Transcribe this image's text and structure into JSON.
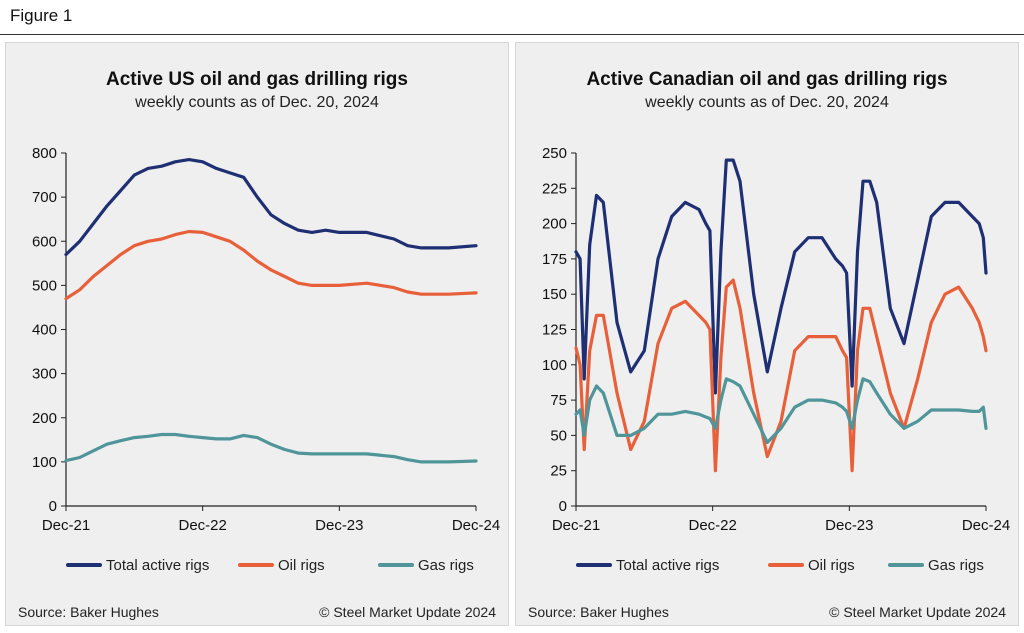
{
  "figure_label": "Figure 1",
  "colors": {
    "total": "#1f2f73",
    "oil": "#e8603a",
    "gas": "#4f9599"
  },
  "chart_data": [
    {
      "type": "line",
      "title": "Active US oil and gas drilling rigs",
      "subtitle": "weekly counts as of Dec. 20, 2024",
      "x_tick_labels": [
        "Dec-21",
        "Dec-22",
        "Dec-23",
        "Dec-24"
      ],
      "xlim": [
        0,
        3
      ],
      "ylim": [
        0,
        800
      ],
      "y_ticks": [
        0,
        100,
        200,
        300,
        400,
        500,
        600,
        700,
        800
      ],
      "x_unit": "years since Dec-21",
      "series": [
        {
          "name": "Total active rigs",
          "color_key": "total",
          "x": [
            0,
            0.1,
            0.2,
            0.3,
            0.4,
            0.5,
            0.6,
            0.7,
            0.8,
            0.9,
            1.0,
            1.1,
            1.2,
            1.3,
            1.4,
            1.5,
            1.6,
            1.7,
            1.8,
            1.9,
            2.0,
            2.2,
            2.4,
            2.5,
            2.6,
            2.8,
            3.0
          ],
          "values": [
            570,
            600,
            640,
            680,
            715,
            750,
            765,
            770,
            780,
            785,
            780,
            765,
            755,
            745,
            700,
            660,
            640,
            625,
            620,
            625,
            620,
            620,
            605,
            590,
            585,
            585,
            590
          ]
        },
        {
          "name": "Oil rigs",
          "color_key": "oil",
          "x": [
            0,
            0.1,
            0.2,
            0.3,
            0.4,
            0.5,
            0.6,
            0.7,
            0.8,
            0.9,
            1.0,
            1.1,
            1.2,
            1.3,
            1.4,
            1.5,
            1.6,
            1.7,
            1.8,
            1.9,
            2.0,
            2.2,
            2.4,
            2.5,
            2.6,
            2.8,
            3.0
          ],
          "values": [
            470,
            490,
            520,
            545,
            570,
            590,
            600,
            605,
            615,
            622,
            620,
            610,
            600,
            580,
            555,
            535,
            520,
            505,
            500,
            500,
            500,
            505,
            495,
            485,
            480,
            480,
            483
          ]
        },
        {
          "name": "Gas rigs",
          "color_key": "gas",
          "x": [
            0,
            0.1,
            0.2,
            0.3,
            0.4,
            0.5,
            0.6,
            0.7,
            0.8,
            0.9,
            1.0,
            1.1,
            1.2,
            1.3,
            1.4,
            1.5,
            1.6,
            1.7,
            1.8,
            1.9,
            2.0,
            2.2,
            2.4,
            2.5,
            2.6,
            2.8,
            3.0
          ],
          "values": [
            103,
            110,
            125,
            140,
            148,
            155,
            158,
            162,
            162,
            158,
            155,
            152,
            152,
            160,
            155,
            140,
            128,
            120,
            118,
            118,
            118,
            118,
            112,
            105,
            100,
            100,
            102
          ]
        }
      ]
    },
    {
      "type": "line",
      "title": "Active Canadian oil and gas drilling rigs",
      "subtitle": "weekly counts as of Dec. 20, 2024",
      "x_tick_labels": [
        "Dec-21",
        "Dec-22",
        "Dec-23",
        "Dec-24"
      ],
      "xlim": [
        0,
        3
      ],
      "ylim": [
        0,
        250
      ],
      "y_ticks": [
        0,
        25,
        50,
        75,
        100,
        125,
        150,
        175,
        200,
        225,
        250
      ],
      "x_unit": "years since Dec-21",
      "series": [
        {
          "name": "Total active rigs",
          "color_key": "total",
          "x": [
            0,
            0.03,
            0.06,
            0.1,
            0.15,
            0.2,
            0.3,
            0.4,
            0.5,
            0.6,
            0.7,
            0.8,
            0.9,
            0.95,
            0.98,
            1.02,
            1.06,
            1.1,
            1.15,
            1.2,
            1.3,
            1.4,
            1.5,
            1.6,
            1.7,
            1.8,
            1.9,
            1.95,
            1.98,
            2.02,
            2.06,
            2.1,
            2.15,
            2.2,
            2.3,
            2.4,
            2.5,
            2.6,
            2.7,
            2.8,
            2.9,
            2.95,
            2.98,
            3.0
          ],
          "values": [
            180,
            175,
            90,
            185,
            220,
            215,
            130,
            95,
            110,
            175,
            205,
            215,
            210,
            200,
            195,
            80,
            180,
            245,
            245,
            230,
            150,
            95,
            140,
            180,
            190,
            190,
            175,
            170,
            165,
            85,
            180,
            230,
            230,
            215,
            140,
            115,
            160,
            205,
            215,
            215,
            205,
            200,
            190,
            165
          ]
        },
        {
          "name": "Oil rigs",
          "color_key": "oil",
          "x": [
            0,
            0.03,
            0.06,
            0.1,
            0.15,
            0.2,
            0.3,
            0.4,
            0.5,
            0.6,
            0.7,
            0.8,
            0.9,
            0.95,
            0.98,
            1.02,
            1.06,
            1.1,
            1.15,
            1.2,
            1.3,
            1.4,
            1.5,
            1.6,
            1.7,
            1.8,
            1.9,
            1.95,
            1.98,
            2.02,
            2.06,
            2.1,
            2.15,
            2.2,
            2.3,
            2.4,
            2.5,
            2.6,
            2.7,
            2.8,
            2.9,
            2.95,
            2.98,
            3.0
          ],
          "values": [
            112,
            100,
            40,
            110,
            135,
            135,
            80,
            40,
            60,
            115,
            140,
            145,
            135,
            130,
            125,
            25,
            105,
            155,
            160,
            140,
            80,
            35,
            60,
            110,
            120,
            120,
            120,
            110,
            105,
            25,
            110,
            140,
            140,
            120,
            80,
            55,
            90,
            130,
            150,
            155,
            140,
            130,
            120,
            110
          ]
        },
        {
          "name": "Gas rigs",
          "color_key": "gas",
          "x": [
            0,
            0.03,
            0.06,
            0.1,
            0.15,
            0.2,
            0.3,
            0.4,
            0.5,
            0.6,
            0.7,
            0.8,
            0.9,
            0.95,
            0.98,
            1.02,
            1.06,
            1.1,
            1.15,
            1.2,
            1.3,
            1.4,
            1.5,
            1.6,
            1.7,
            1.8,
            1.9,
            1.95,
            1.98,
            2.02,
            2.06,
            2.1,
            2.15,
            2.2,
            2.3,
            2.4,
            2.5,
            2.6,
            2.7,
            2.8,
            2.9,
            2.95,
            2.98,
            3.0
          ],
          "values": [
            65,
            68,
            50,
            75,
            85,
            80,
            50,
            50,
            55,
            65,
            65,
            67,
            65,
            63,
            62,
            55,
            75,
            90,
            88,
            85,
            65,
            45,
            55,
            70,
            75,
            75,
            73,
            70,
            67,
            55,
            75,
            90,
            88,
            80,
            65,
            55,
            60,
            68,
            68,
            68,
            67,
            67,
            70,
            55
          ]
        }
      ]
    }
  ],
  "legend": [
    {
      "label": "Total active rigs",
      "color_key": "total"
    },
    {
      "label": "Oil rigs",
      "color_key": "oil"
    },
    {
      "label": "Gas rigs",
      "color_key": "gas"
    }
  ],
  "footer": {
    "source": "Source: Baker Hughes",
    "copyright": "© Steel Market Update 2024"
  }
}
